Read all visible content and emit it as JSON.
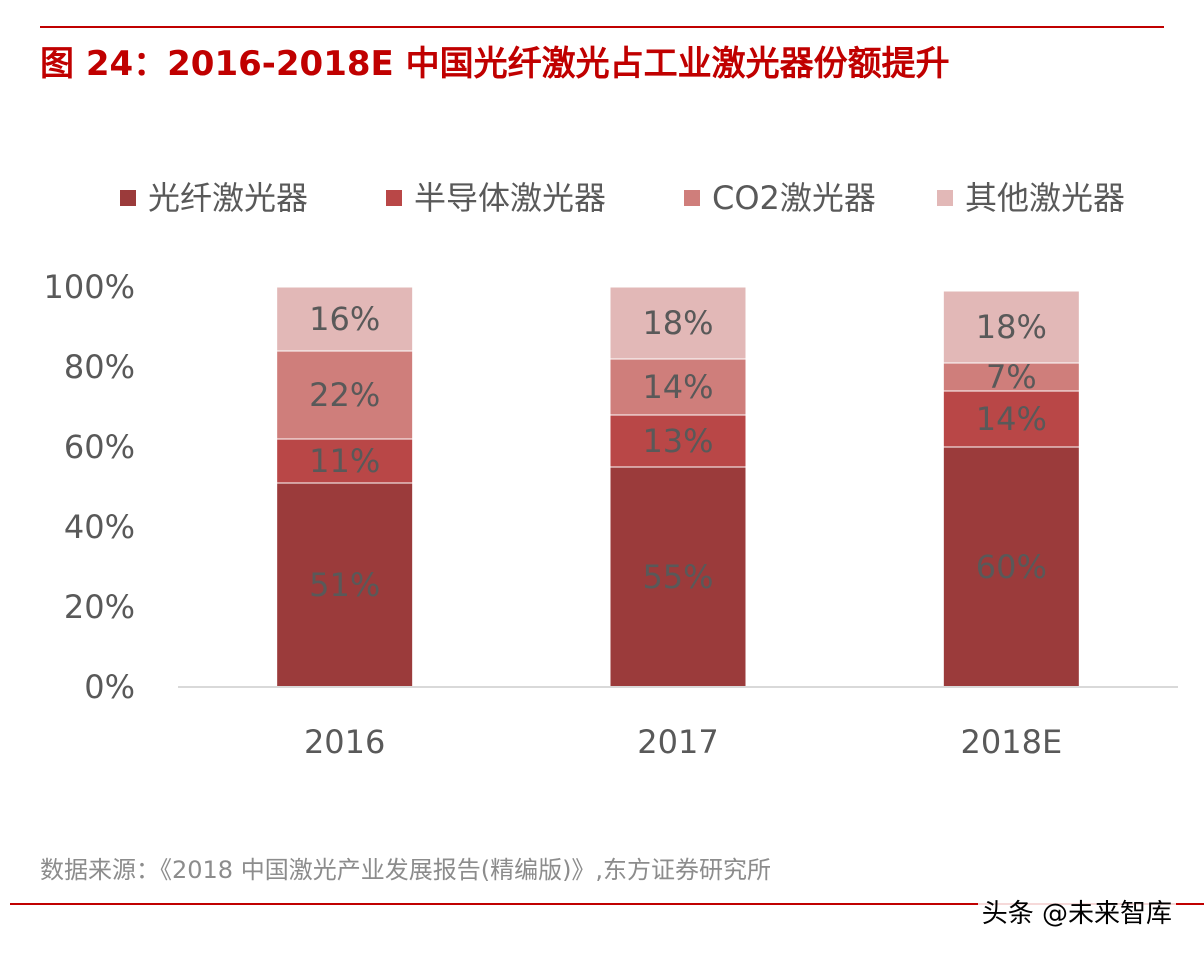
{
  "title": "图 24：2016-2018E 中国光纤激光占工业激光器份额提升",
  "source": "数据来源：《2018 中国激光产业发展报告(精编版)》,东方证券研究所",
  "watermark": "头条 @未来智库",
  "colors": {
    "title": "#c00000",
    "rule": "#c00000",
    "text": "#595959",
    "axis": "#d9d9d9"
  },
  "chart_data": {
    "type": "bar",
    "stacked": true,
    "categories": [
      "2016",
      "2017",
      "2018E"
    ],
    "series": [
      {
        "name": "光纤激光器",
        "values": [
          51,
          55,
          60
        ],
        "labels": [
          "51%",
          "55%",
          "60%"
        ],
        "color": "#9b3b3b"
      },
      {
        "name": "半导体激光器",
        "values": [
          11,
          13,
          14
        ],
        "labels": [
          "11%",
          "13%",
          "14%"
        ],
        "color": "#b94747"
      },
      {
        "name": "CO2激光器",
        "values": [
          22,
          14,
          7
        ],
        "labels": [
          "22%",
          "14%",
          "7%"
        ],
        "color": "#cf7e7b"
      },
      {
        "name": "其他激光器",
        "values": [
          16,
          18,
          18
        ],
        "labels": [
          "16%",
          "18%",
          "18%"
        ],
        "color": "#e2b8b7"
      }
    ],
    "y_ticks": [
      "0%",
      "20%",
      "40%",
      "60%",
      "80%",
      "100%"
    ],
    "ylim": [
      0,
      100
    ],
    "grid": false,
    "legend_position": "top"
  }
}
